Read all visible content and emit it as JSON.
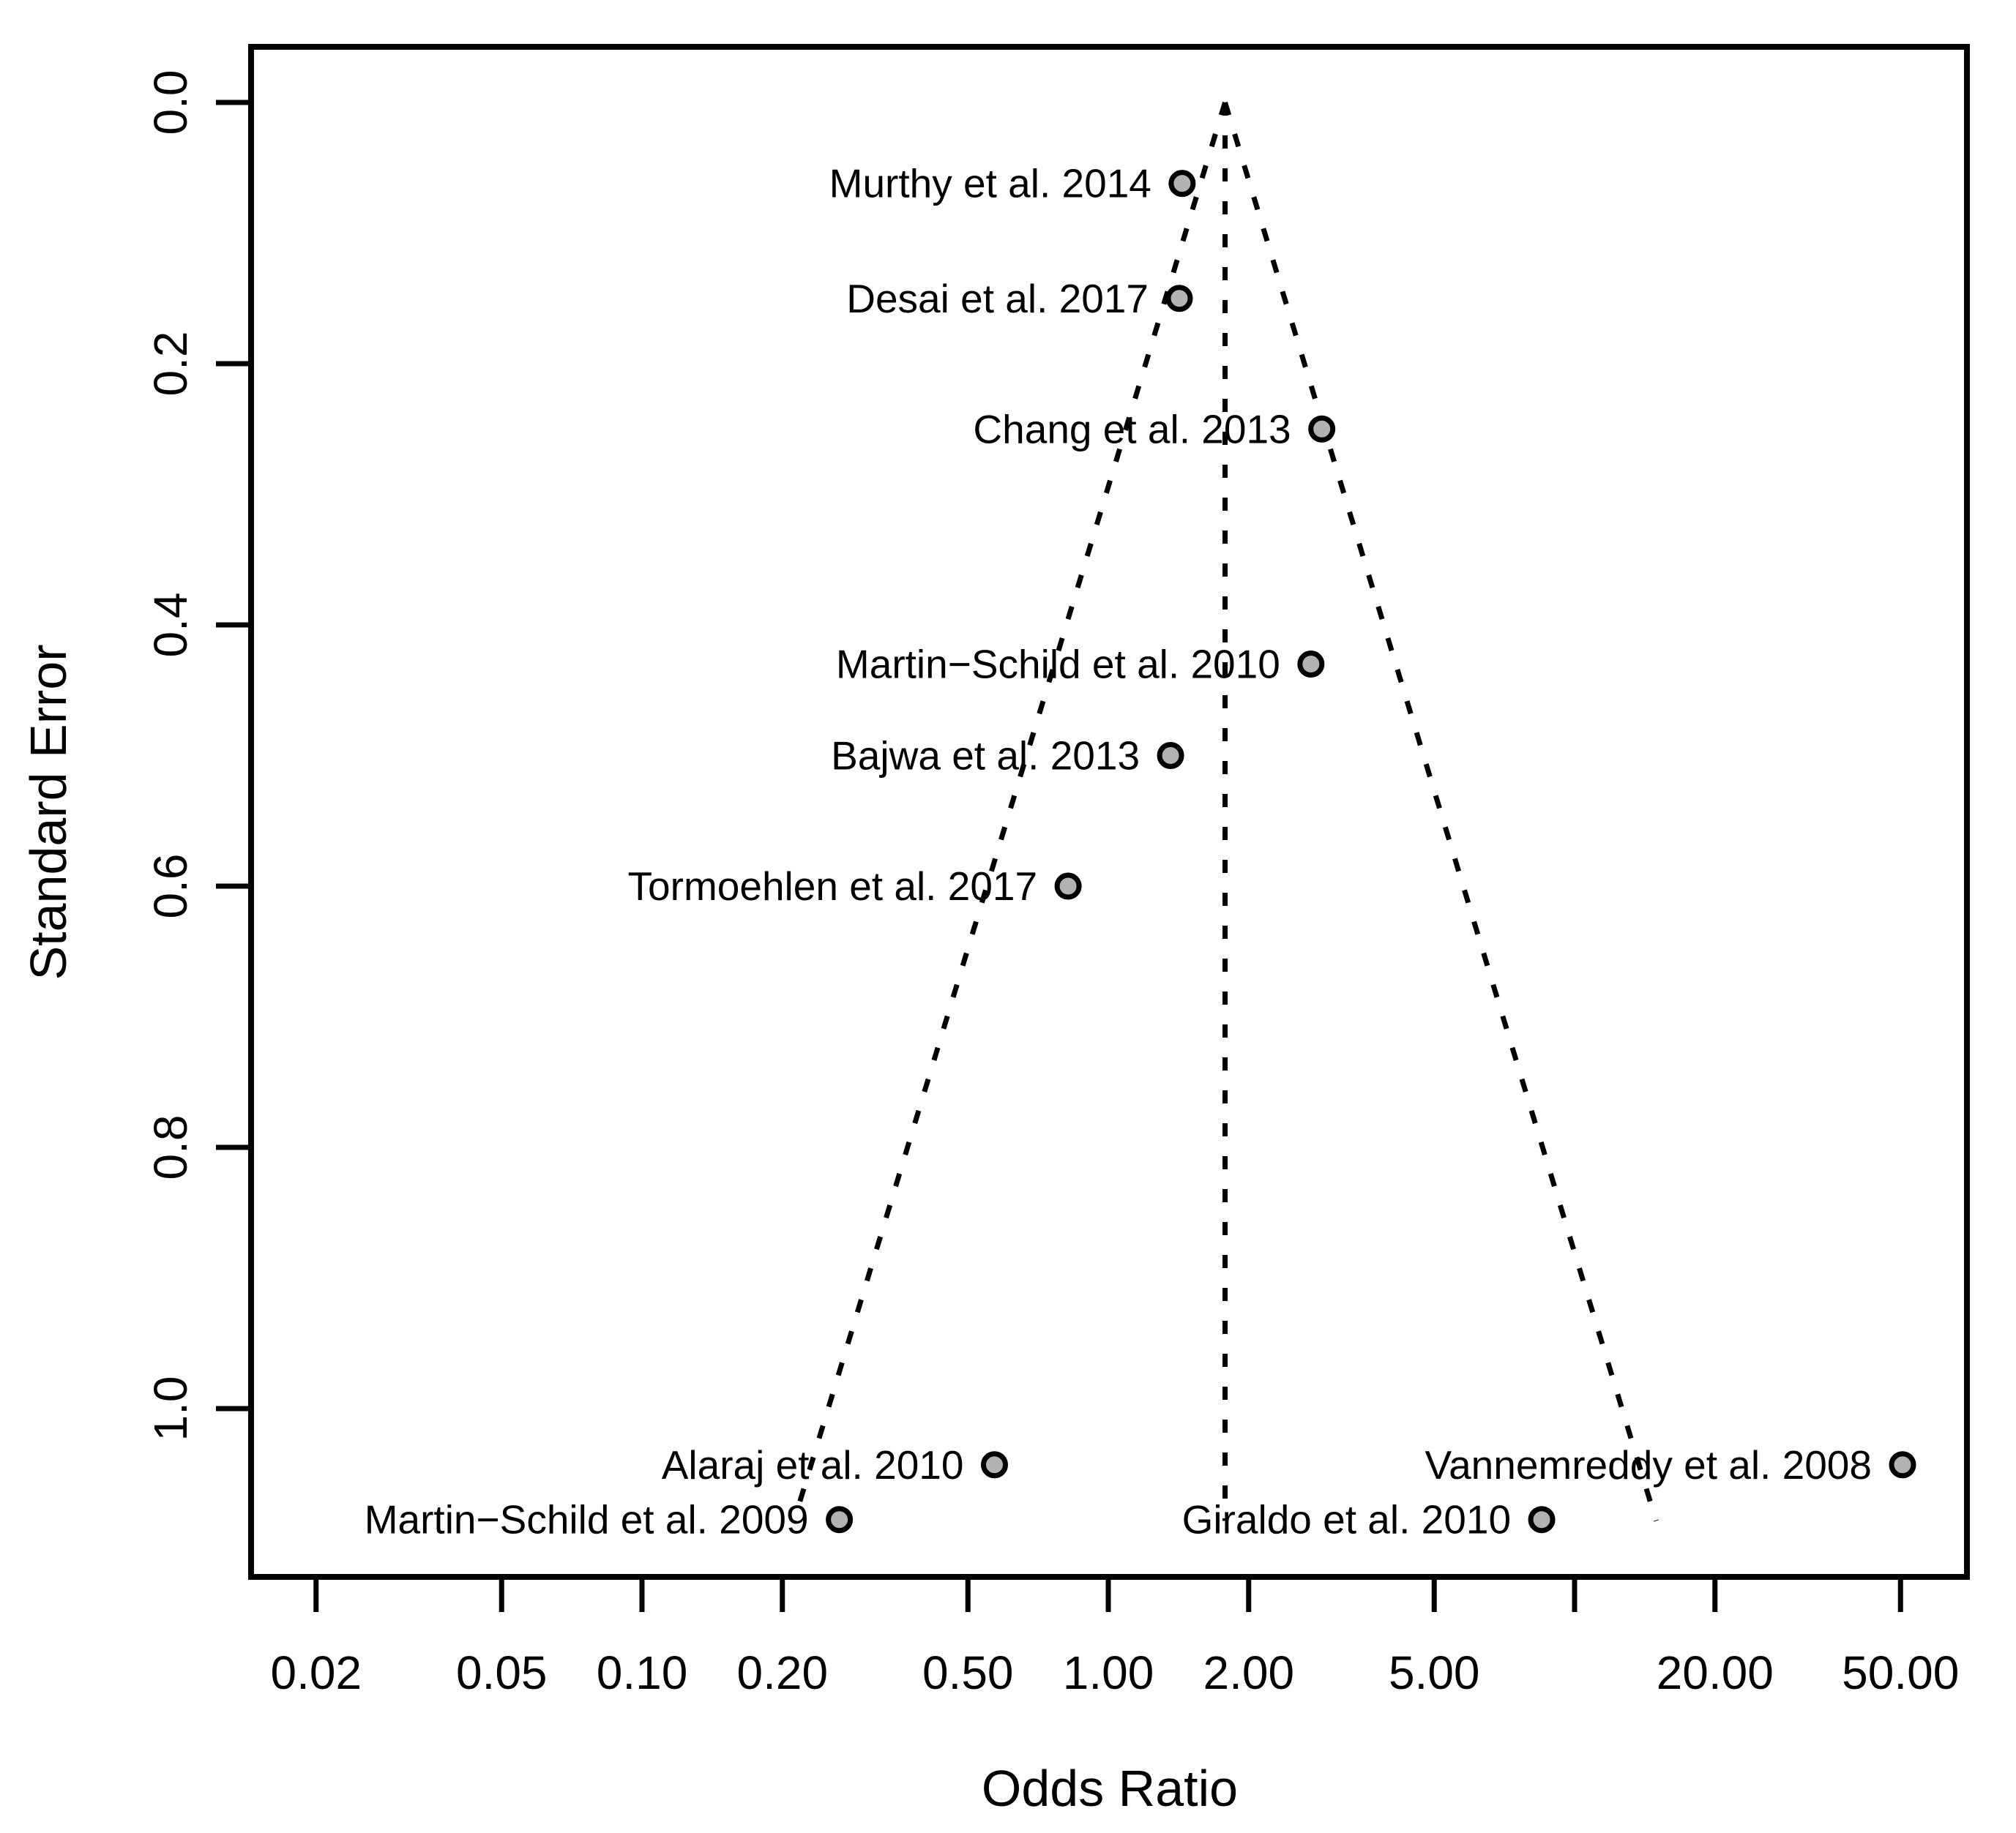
{
  "chart_data": {
    "type": "scatter",
    "title": "",
    "xlabel": "Odds Ratio",
    "ylabel": "Standard Error",
    "x_scale": "log",
    "y_axis_direction": "reversed (0 at top)",
    "xlim": [
      0.0147,
      69.0
    ],
    "ylim": [
      -0.043,
      1.129
    ],
    "grid": false,
    "legend": "none",
    "x_ticks": [
      {
        "value": 0.02,
        "label": "0.02"
      },
      {
        "value": 0.05,
        "label": "0.05"
      },
      {
        "value": 0.1,
        "label": "0.10"
      },
      {
        "value": 0.2,
        "label": "0.20"
      },
      {
        "value": 0.5,
        "label": "0.50"
      },
      {
        "value": 1.0,
        "label": "1.00"
      },
      {
        "value": 2.0,
        "label": "2.00"
      },
      {
        "value": 5.0,
        "label": "5.00"
      },
      {
        "value": 10.0,
        "label": ""
      },
      {
        "value": 20.0,
        "label": "20.00"
      },
      {
        "value": 50.0,
        "label": "50.00"
      }
    ],
    "y_ticks": [
      {
        "value": 0.0,
        "label": "0.0"
      },
      {
        "value": 0.2,
        "label": "0.2"
      },
      {
        "value": 0.4,
        "label": "0.4"
      },
      {
        "value": 0.6,
        "label": "0.6"
      },
      {
        "value": 0.8,
        "label": "0.8"
      },
      {
        "value": 1.0,
        "label": "1.0"
      }
    ],
    "points": [
      {
        "label": "Murthy et al. 2014",
        "odds_ratio": 1.44,
        "standard_error": 0.062
      },
      {
        "label": "Desai et al. 2017",
        "odds_ratio": 1.42,
        "standard_error": 0.15
      },
      {
        "label": "Chang et al. 2013",
        "odds_ratio": 2.87,
        "standard_error": 0.25
      },
      {
        "label": "Martin−Schild et al. 2010",
        "odds_ratio": 2.72,
        "standard_error": 0.43
      },
      {
        "label": "Bajwa et al. 2013",
        "odds_ratio": 1.36,
        "standard_error": 0.5
      },
      {
        "label": "Tormoehlen et al. 2017",
        "odds_ratio": 0.82,
        "standard_error": 0.6
      },
      {
        "label": "Alaraj et al. 2010",
        "odds_ratio": 0.57,
        "standard_error": 1.043
      },
      {
        "label": "Martin−Schild et al. 2009",
        "odds_ratio": 0.265,
        "standard_error": 1.085
      },
      {
        "label": "Giraldo et al. 2010",
        "odds_ratio": 8.5,
        "standard_error": 1.085
      },
      {
        "label": "Vannemreddy et al. 2008",
        "odds_ratio": 50.5,
        "standard_error": 1.043
      }
    ],
    "funnel": {
      "center_odds_ratio": 1.78,
      "ci_z": 1.96,
      "max_standard_error": 1.086,
      "line_style": "dotted"
    },
    "colors": {
      "background": "#ffffff",
      "point_fill": "#b2b2b2",
      "point_stroke": "#000000",
      "line": "#000000",
      "text": "#000000"
    }
  }
}
